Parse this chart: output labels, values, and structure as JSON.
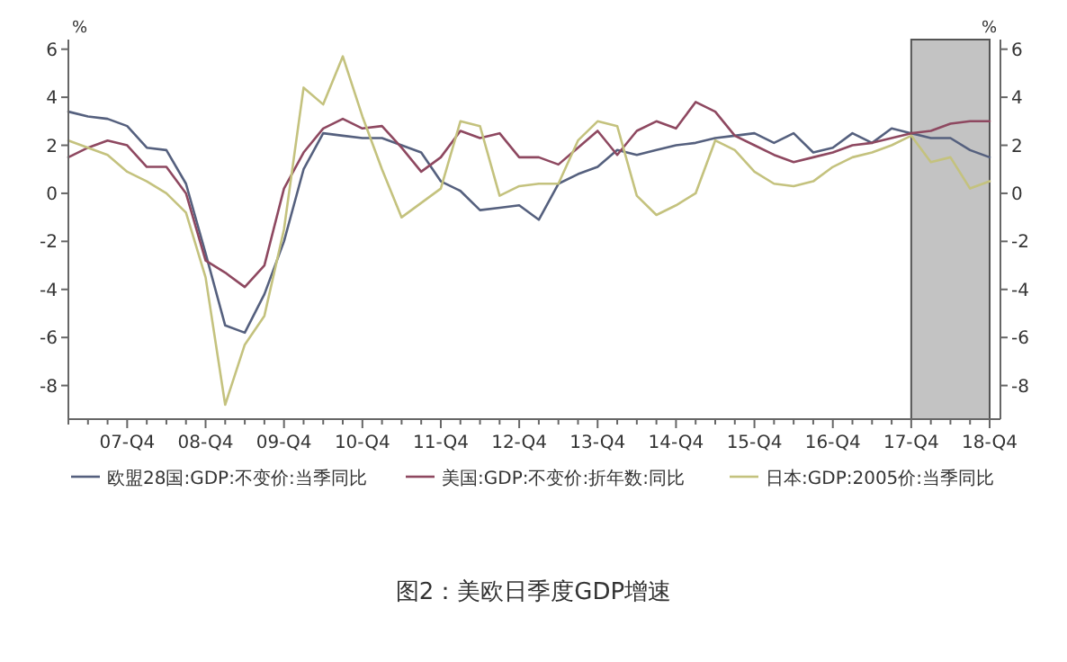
{
  "chart_data": {
    "type": "line",
    "title": "图2：美欧日季度GDP增速",
    "ylabel": "%",
    "y2label": "%",
    "categories": [
      null,
      null,
      null,
      "07-Q4",
      null,
      null,
      null,
      "08-Q4",
      null,
      null,
      null,
      "09-Q4",
      null,
      null,
      null,
      "10-Q4",
      null,
      null,
      null,
      "11-Q4",
      null,
      null,
      null,
      "12-Q4",
      null,
      null,
      null,
      "13-Q4",
      null,
      null,
      null,
      "14-Q4",
      null,
      null,
      null,
      "15-Q4",
      null,
      null,
      null,
      "16-Q4",
      null,
      null,
      null,
      "17-Q4",
      null,
      null,
      null,
      "18-Q4"
    ],
    "ylim": [
      -9.4,
      6.4
    ],
    "yticks": [
      -8,
      -6,
      -4,
      -2,
      0,
      2,
      4,
      6
    ],
    "y2lim": [
      -9.4,
      6.4
    ],
    "y2ticks": [
      -8,
      -6,
      -4,
      -2,
      0,
      2,
      4,
      6
    ],
    "series": [
      {
        "name": "欧盟28国:GDP:不变价:当季同比",
        "color": "#55607e",
        "values": [
          3.4,
          3.2,
          3.1,
          2.8,
          1.9,
          1.8,
          0.4,
          -2.5,
          -5.5,
          -5.8,
          -4.2,
          -2.0,
          1.0,
          2.5,
          2.4,
          2.3,
          2.3,
          2.0,
          1.7,
          0.5,
          0.1,
          -0.7,
          -0.6,
          -0.5,
          -1.1,
          0.4,
          0.8,
          1.1,
          1.8,
          1.6,
          1.8,
          2.0,
          2.1,
          2.3,
          2.4,
          2.5,
          2.1,
          2.5,
          1.7,
          1.9,
          2.5,
          2.1,
          2.7,
          2.5,
          2.3,
          2.3,
          1.8,
          1.5
        ]
      },
      {
        "name": "美国:GDP:不变价:折年数:同比",
        "color": "#8e4860",
        "values": [
          1.5,
          1.9,
          2.2,
          2.0,
          1.1,
          1.1,
          0.0,
          -2.8,
          -3.3,
          -3.9,
          -3.0,
          0.2,
          1.7,
          2.7,
          3.1,
          2.7,
          2.8,
          1.9,
          0.9,
          1.5,
          2.6,
          2.3,
          2.5,
          1.5,
          1.5,
          1.2,
          1.9,
          2.6,
          1.6,
          2.6,
          3.0,
          2.7,
          3.8,
          3.4,
          2.4,
          2.0,
          1.6,
          1.3,
          1.5,
          1.7,
          2.0,
          2.1,
          2.3,
          2.5,
          2.6,
          2.9,
          3.0,
          3.0
        ]
      },
      {
        "name": "日本:GDP:2005价:当季同比",
        "color": "#c4c27e",
        "values": [
          2.2,
          1.9,
          1.6,
          0.9,
          0.5,
          0.0,
          -0.8,
          -3.5,
          -8.8,
          -6.3,
          -5.1,
          -1.5,
          4.4,
          3.7,
          5.7,
          3.2,
          1.0,
          -1.0,
          -0.4,
          0.2,
          3.0,
          2.8,
          -0.1,
          0.3,
          0.4,
          0.4,
          2.2,
          3.0,
          2.8,
          -0.1,
          -0.9,
          -0.5,
          0.0,
          2.2,
          1.8,
          0.9,
          0.4,
          0.3,
          0.5,
          1.1,
          1.5,
          1.7,
          2.0,
          2.4,
          1.3,
          1.5,
          0.2,
          0.5
        ]
      }
    ],
    "bands": [
      {
        "axis": "x",
        "from": "17-Q4",
        "to": "18-Q4",
        "color": "#c3c3c3"
      }
    ],
    "legend": "bottom",
    "line_style": "solid",
    "marker": "none"
  }
}
